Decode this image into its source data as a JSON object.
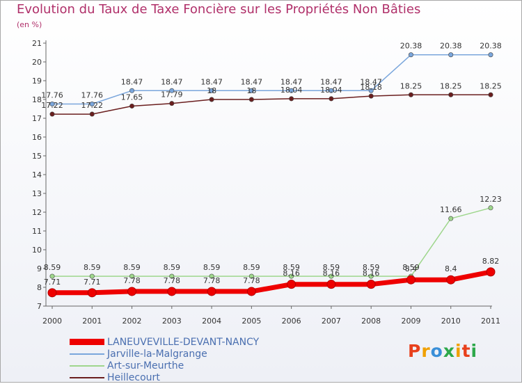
{
  "chart_data": {
    "type": "line",
    "title": "Evolution du Taux de Taxe Foncière sur les Propriétés Non Bâties",
    "unit_label": "(en %)",
    "xlabel": "",
    "ylabel": "",
    "ylim": [
      7,
      21
    ],
    "y_ticks": [
      "7",
      "8",
      "9",
      "10",
      "11",
      "12",
      "13",
      "14",
      "15",
      "16",
      "17",
      "18",
      "19",
      "20",
      "21"
    ],
    "categories": [
      "2000",
      "2001",
      "2002",
      "2003",
      "2004",
      "2005",
      "2006",
      "2007",
      "2008",
      "2009",
      "2010",
      "2011"
    ],
    "grid": false,
    "legend_position": "bottom-left",
    "series": [
      {
        "name": "LANEUVEVILLE-DEVANT-NANCY",
        "color": "#ee0000",
        "values": [
          7.71,
          7.71,
          7.78,
          7.78,
          7.78,
          7.78,
          8.16,
          8.16,
          8.16,
          8.4,
          8.4,
          8.82
        ],
        "labels": [
          "7.71",
          "7.71",
          "7.78",
          "7.78",
          "7.78",
          "7.78",
          "8.16",
          "8.16",
          "8.16",
          "8.4",
          "8.4",
          "8.82"
        ]
      },
      {
        "name": "Jarville-la-Malgrange",
        "color": "#7aa6dc",
        "values": [
          17.76,
          17.76,
          18.47,
          18.47,
          18.47,
          18.47,
          18.47,
          18.47,
          18.47,
          20.38,
          20.38,
          20.38
        ],
        "labels": [
          "17.76",
          "17.76",
          "18.47",
          "18.47",
          "18.47",
          "18.47",
          "18.47",
          "18.47",
          "18.47",
          "20.38",
          "20.38",
          "20.38"
        ]
      },
      {
        "name": "Art-sur-Meurthe",
        "color": "#9ed68c",
        "values": [
          8.59,
          8.59,
          8.59,
          8.59,
          8.59,
          8.59,
          8.59,
          8.59,
          8.59,
          8.59,
          11.66,
          12.23
        ],
        "labels": [
          "8.59",
          "8.59",
          "8.59",
          "8.59",
          "8.59",
          "8.59",
          "8.59",
          "8.59",
          "8.59",
          "8.59",
          "11.66",
          "12.23"
        ]
      },
      {
        "name": "Heillecourt",
        "color": "#6a1e1e",
        "values": [
          17.22,
          17.22,
          17.65,
          17.79,
          18,
          18,
          18.04,
          18.04,
          18.18,
          18.25,
          18.25,
          18.25
        ],
        "labels": [
          "17.22",
          "17.22",
          "17.65",
          "17.79",
          "18",
          "18",
          "18.04",
          "18.04",
          "18.18",
          "18.25",
          "18.25",
          "18.25"
        ]
      }
    ]
  },
  "logo": {
    "text": "Proxiti"
  }
}
